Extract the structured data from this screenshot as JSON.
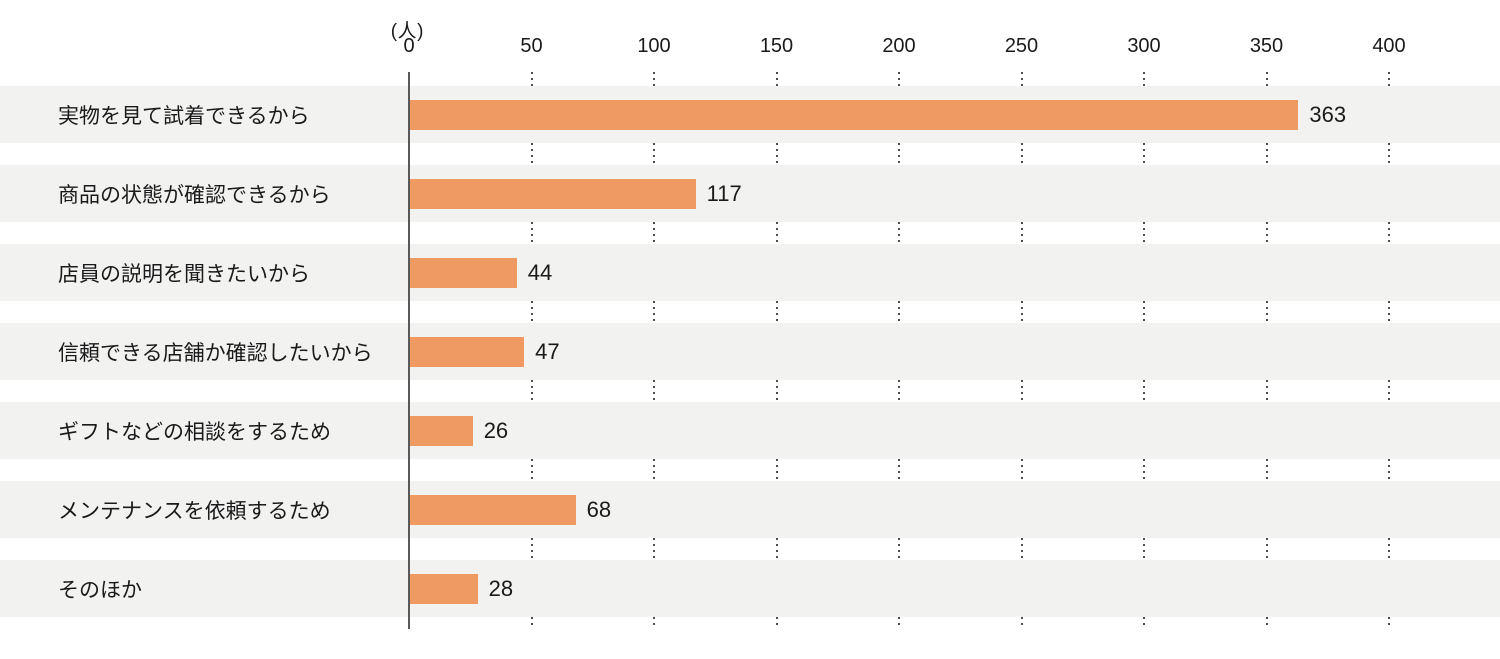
{
  "chart": {
    "unit_label": "(人)",
    "colors": {
      "bar": "#F09A63",
      "stripe": "#F2F2F1",
      "axis": "#595959",
      "grid_dot": "#4D4D4D",
      "text": "#1A1A1A",
      "background": "#FFFFFF"
    }
  },
  "chart_data": {
    "type": "bar",
    "orientation": "horizontal",
    "title": "",
    "unit": "(人)",
    "categories": [
      "実物を見て試着できるから",
      "商品の状態が確認できるから",
      "店員の説明を聞きたいから",
      "信頼できる店舗か確認したいから",
      "ギフトなどの相談をするため",
      "メンテナンスを依頼するため",
      "そのほか"
    ],
    "values": [
      363,
      117,
      44,
      47,
      26,
      68,
      28
    ],
    "xlabel": "",
    "ylabel": "",
    "xlim": [
      0,
      400
    ],
    "x_ticks": [
      0,
      50,
      100,
      150,
      200,
      250,
      300,
      350,
      400
    ],
    "grid": "dotted vertical gridlines at each x tick, drawn only between row stripes",
    "legend": "none",
    "value_labels_shown": true,
    "row_background": "alternating light-gray stripes behind each bar row"
  }
}
